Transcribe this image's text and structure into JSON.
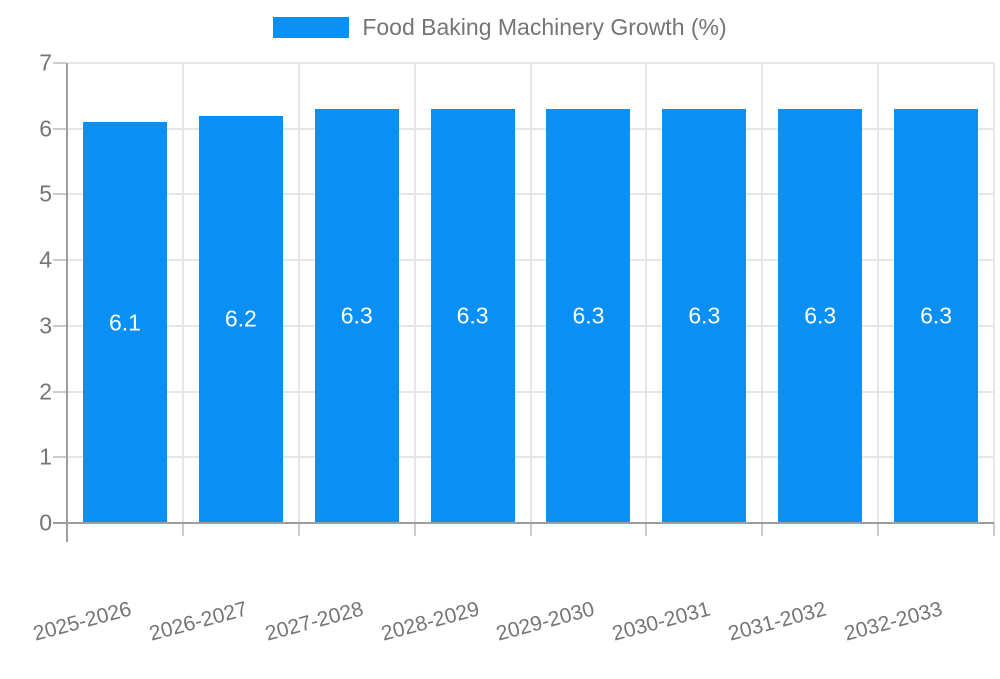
{
  "chart_data": {
    "type": "bar",
    "title": "Food Baking Machinery Growth (%)",
    "categories": [
      "2025-2026",
      "2026-2027",
      "2027-2028",
      "2028-2029",
      "2029-2030",
      "2030-2031",
      "2031-2032",
      "2032-2033"
    ],
    "values": [
      6.1,
      6.2,
      6.3,
      6.3,
      6.3,
      6.3,
      6.3,
      6.3
    ],
    "value_labels": [
      "6.1",
      "6.2",
      "6.3",
      "6.3",
      "6.3",
      "6.3",
      "6.3",
      "6.3"
    ],
    "xlabel": "",
    "ylabel": "",
    "ylim": [
      0,
      7
    ],
    "yticks": [
      0,
      1,
      2,
      3,
      4,
      5,
      6,
      7
    ],
    "grid": true,
    "legend_position": "top",
    "colors": {
      "bar": "#0a90f5",
      "bar_label": "#ffffff",
      "axis_text": "#757575",
      "grid_line": "#e6e6e6",
      "axis_line": "#9e9e9e",
      "tick": "#cccccc",
      "background": "#ffffff"
    }
  }
}
